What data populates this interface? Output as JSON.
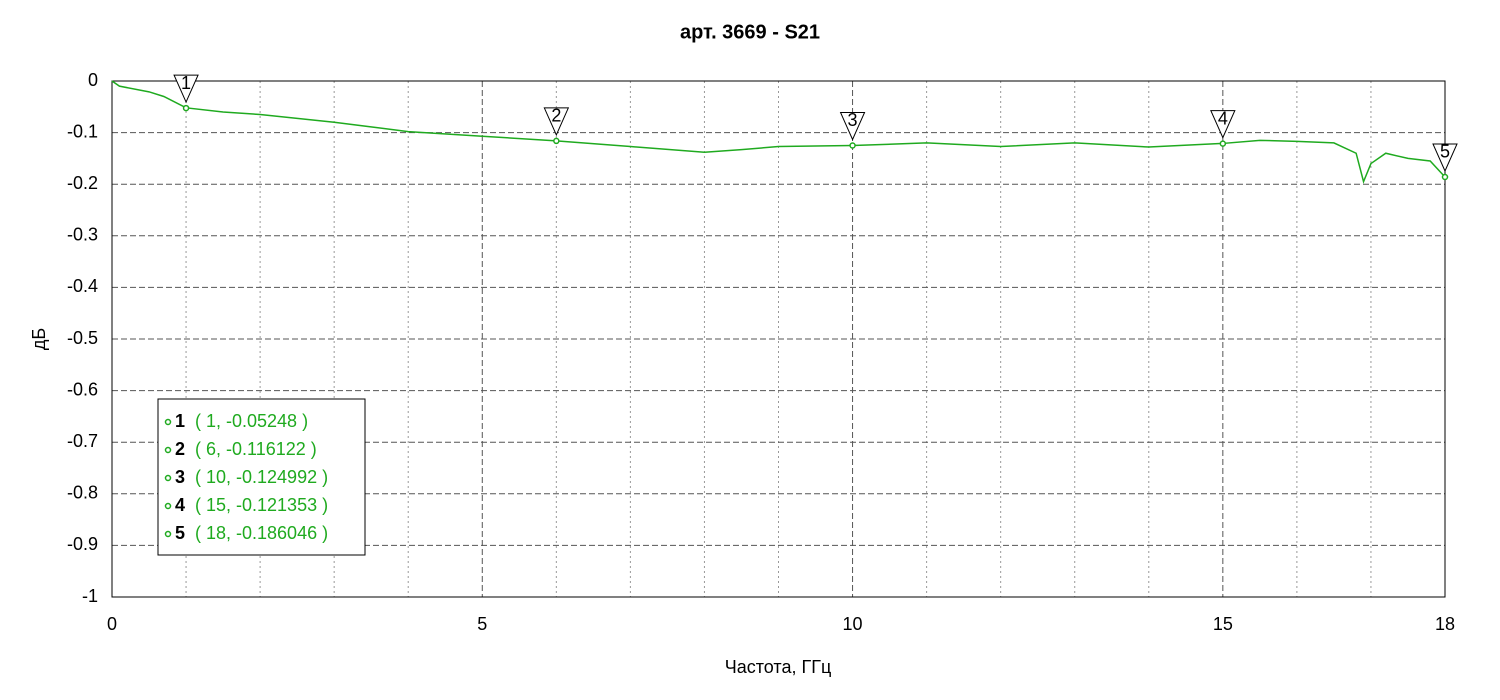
{
  "chart_data": {
    "type": "line",
    "title": "арт. 3669 - S21",
    "xlabel": "Частота, ГГц",
    "ylabel": "дБ",
    "xlim": [
      0,
      18
    ],
    "ylim": [
      -1,
      0
    ],
    "xticks": [
      0,
      5,
      10,
      15,
      18
    ],
    "xminorticks": [
      1,
      2,
      3,
      4,
      6,
      7,
      8,
      9,
      11,
      12,
      13,
      14,
      16,
      17
    ],
    "yticks": [
      0,
      -0.1,
      -0.2,
      -0.3,
      -0.4,
      -0.5,
      -0.6,
      -0.7,
      -0.8,
      -0.9,
      -1
    ],
    "grid": true,
    "series": [
      {
        "color": "#1faa1f",
        "x": [
          0,
          0.1,
          0.5,
          0.7,
          1,
          1.5,
          2,
          3,
          4,
          5,
          6,
          7,
          8,
          8.5,
          9,
          10,
          11,
          12,
          13,
          14,
          15,
          15.5,
          16,
          16.5,
          16.8,
          16.9,
          17,
          17.2,
          17.5,
          17.8,
          18
        ],
        "values": [
          0,
          -0.01,
          -0.021,
          -0.03,
          -0.052,
          -0.06,
          -0.065,
          -0.08,
          -0.098,
          -0.107,
          -0.116,
          -0.127,
          -0.138,
          -0.133,
          -0.127,
          -0.125,
          -0.12,
          -0.127,
          -0.12,
          -0.128,
          -0.121,
          -0.115,
          -0.117,
          -0.12,
          -0.14,
          -0.195,
          -0.16,
          -0.14,
          -0.15,
          -0.155,
          -0.186
        ]
      }
    ],
    "markers": [
      {
        "label": "1",
        "x": 1,
        "y": -0.05248,
        "readout": "( 1, -0.05248 )"
      },
      {
        "label": "2",
        "x": 6,
        "y": -0.116122,
        "readout": "( 6, -0.116122 )"
      },
      {
        "label": "3",
        "x": 10,
        "y": -0.124992,
        "readout": "( 10, -0.124992 )"
      },
      {
        "label": "4",
        "x": 15,
        "y": -0.121353,
        "readout": "( 15, -0.121353 )"
      },
      {
        "label": "5",
        "x": 18,
        "y": -0.186046,
        "readout": "( 18, -0.186046 )"
      }
    ]
  }
}
